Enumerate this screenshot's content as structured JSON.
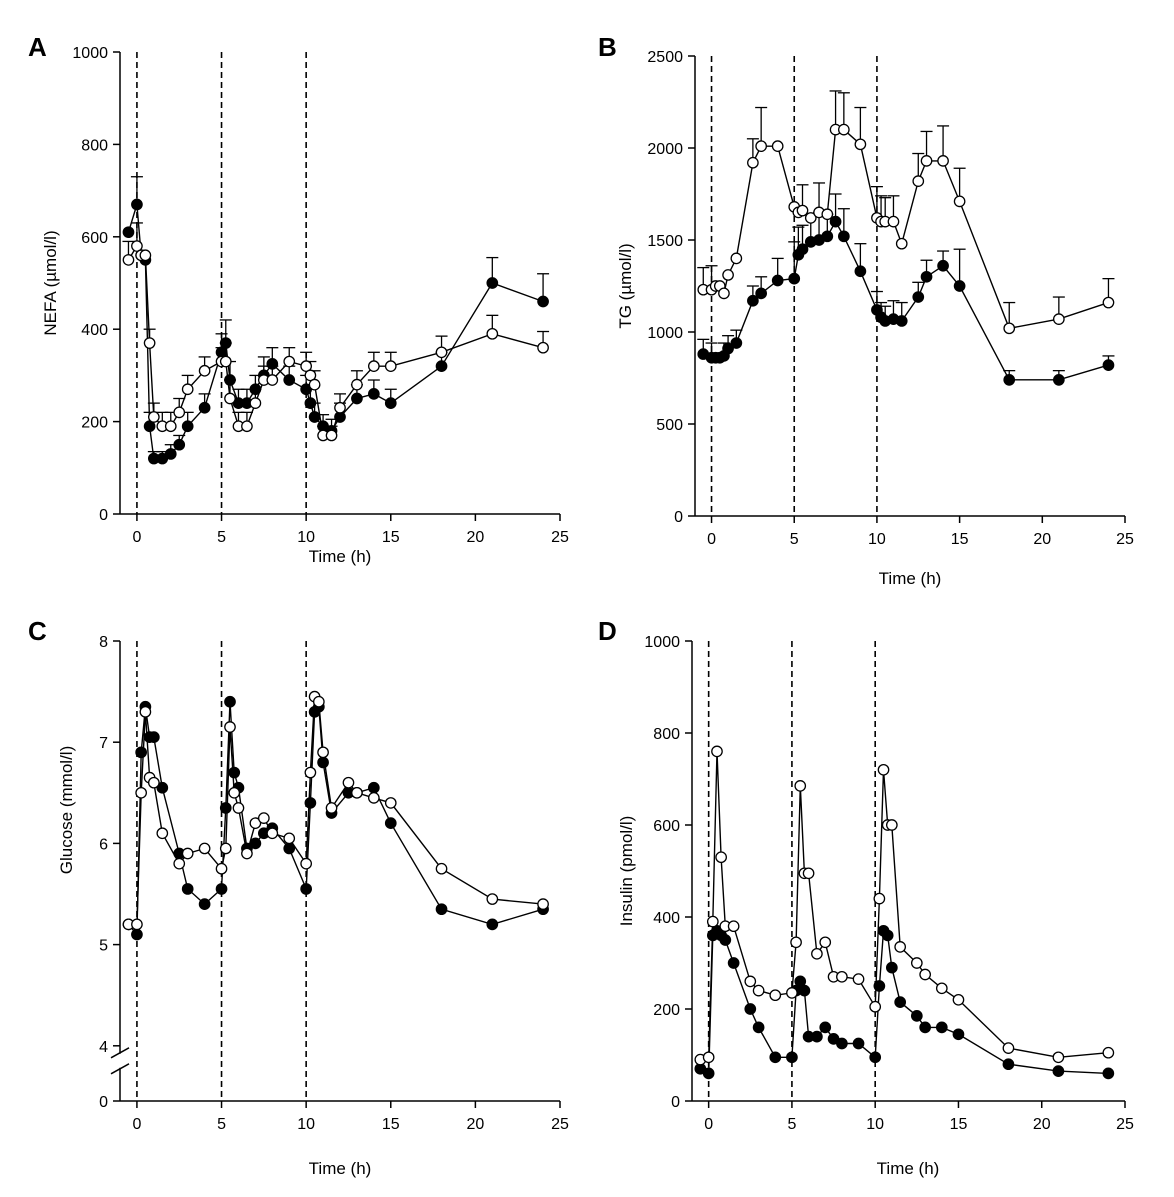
{
  "chart_data": [
    {
      "panel": "A",
      "type": "line",
      "xlabel": "Time (h)",
      "ylabel": "NEFA (µmol/l)",
      "xlim": [
        -1,
        25
      ],
      "ylim": [
        0,
        1000
      ],
      "xticks": [
        0,
        5,
        10,
        15,
        20,
        25
      ],
      "yticks": [
        0,
        200,
        400,
        600,
        800,
        1000
      ],
      "meal_lines": [
        0,
        5,
        10
      ],
      "axis_break": false,
      "series": [
        {
          "marker": "filled",
          "x": [
            -0.5,
            0,
            0.25,
            0.5,
            0.75,
            1,
            1.5,
            2,
            2.5,
            3,
            4,
            5,
            5.25,
            5.5,
            6,
            6.5,
            7,
            7.5,
            8,
            9,
            10,
            10.25,
            10.5,
            11,
            11.5,
            12,
            13,
            14,
            15,
            18,
            21,
            24
          ],
          "y": [
            610,
            670,
            560,
            550,
            190,
            120,
            120,
            130,
            150,
            190,
            230,
            350,
            370,
            290,
            240,
            240,
            270,
            300,
            325,
            290,
            270,
            240,
            210,
            190,
            180,
            210,
            250,
            260,
            240,
            320,
            500,
            460
          ],
          "err": [
            0,
            60,
            0,
            0,
            30,
            15,
            15,
            20,
            20,
            30,
            30,
            40,
            50,
            40,
            30,
            30,
            30,
            40,
            35,
            30,
            30,
            30,
            30,
            25,
            25,
            30,
            30,
            30,
            30,
            30,
            55,
            60
          ]
        },
        {
          "marker": "open",
          "x": [
            -0.5,
            0,
            0.25,
            0.5,
            0.75,
            1,
            1.5,
            2,
            2.5,
            3,
            4,
            5,
            5.25,
            5.5,
            6,
            6.5,
            7,
            7.5,
            8,
            9,
            10,
            10.25,
            10.5,
            11,
            11.5,
            12,
            13,
            14,
            15,
            18,
            21,
            24
          ],
          "y": [
            550,
            580,
            560,
            560,
            370,
            210,
            190,
            190,
            220,
            270,
            310,
            330,
            330,
            250,
            190,
            190,
            240,
            290,
            290,
            330,
            320,
            300,
            280,
            170,
            170,
            230,
            280,
            320,
            320,
            350,
            390,
            360
          ],
          "err": [
            40,
            50,
            0,
            0,
            30,
            30,
            30,
            30,
            30,
            30,
            30,
            30,
            40,
            40,
            30,
            30,
            30,
            30,
            30,
            30,
            30,
            30,
            30,
            20,
            20,
            30,
            30,
            30,
            30,
            35,
            40,
            35
          ]
        }
      ]
    },
    {
      "panel": "B",
      "type": "line",
      "xlabel": "Time (h)",
      "ylabel": "TG (µmol/l)",
      "xlim": [
        -1,
        25
      ],
      "ylim": [
        0,
        2500
      ],
      "xticks": [
        0,
        5,
        10,
        15,
        20,
        25
      ],
      "yticks": [
        0,
        500,
        1000,
        1500,
        2000,
        2500
      ],
      "meal_lines": [
        0,
        5,
        10
      ],
      "axis_break": false,
      "series": [
        {
          "marker": "filled",
          "x": [
            -0.5,
            0,
            0.25,
            0.5,
            0.75,
            1,
            1.5,
            2.5,
            3,
            4,
            5,
            5.25,
            5.5,
            6,
            6.5,
            7,
            7.5,
            8,
            9,
            10,
            10.25,
            10.5,
            11,
            11.5,
            12.5,
            13,
            14,
            15,
            18,
            21,
            24
          ],
          "y": [
            880,
            860,
            860,
            860,
            870,
            910,
            940,
            1170,
            1210,
            1280,
            1290,
            1420,
            1450,
            1490,
            1500,
            1520,
            1600,
            1520,
            1330,
            1120,
            1080,
            1060,
            1070,
            1060,
            1190,
            1300,
            1360,
            1250,
            740,
            740,
            820
          ],
          "err": [
            80,
            80,
            0,
            0,
            70,
            70,
            70,
            80,
            90,
            120,
            200,
            150,
            130,
            150,
            150,
            120,
            150,
            150,
            150,
            100,
            80,
            80,
            100,
            100,
            80,
            90,
            80,
            200,
            50,
            50,
            50
          ]
        },
        {
          "marker": "open",
          "x": [
            -0.5,
            0,
            0.25,
            0.5,
            0.75,
            1,
            1.5,
            2.5,
            3,
            4,
            5,
            5.25,
            5.5,
            6,
            6.5,
            7,
            7.5,
            8,
            9,
            10,
            10.25,
            10.5,
            11,
            11.5,
            12.5,
            13,
            14,
            15,
            18,
            21,
            24
          ],
          "y": [
            1230,
            1230,
            1250,
            1250,
            1210,
            1310,
            1400,
            1920,
            2010,
            2010,
            1680,
            1650,
            1660,
            1620,
            1650,
            1640,
            2100,
            2100,
            2020,
            1620,
            1600,
            1600,
            1600,
            1480,
            1820,
            1930,
            1930,
            1710,
            1020,
            1070,
            1160
          ],
          "err": [
            120,
            130,
            0,
            0,
            0,
            0,
            0,
            130,
            210,
            0,
            0,
            0,
            140,
            0,
            160,
            0,
            210,
            200,
            200,
            170,
            140,
            130,
            140,
            0,
            150,
            160,
            190,
            180,
            140,
            120,
            130
          ]
        }
      ]
    },
    {
      "panel": "C",
      "type": "line",
      "xlabel": "Time (h)",
      "ylabel": "Glucose (mmol/l)",
      "xlim": [
        -1,
        25
      ],
      "ylim": [
        4,
        8
      ],
      "xticks": [
        0,
        5,
        10,
        15,
        20,
        25
      ],
      "yticks": [
        4,
        5,
        6,
        7,
        8
      ],
      "break_tick": 0,
      "meal_lines": [
        0,
        5,
        10
      ],
      "axis_break": true,
      "series": [
        {
          "marker": "filled",
          "x": [
            -0.5,
            0,
            0.25,
            0.5,
            0.75,
            1,
            1.5,
            2.5,
            3,
            4,
            5,
            5.25,
            5.5,
            5.75,
            6,
            6.5,
            7,
            7.5,
            8,
            9,
            10,
            10.25,
            10.5,
            10.75,
            11,
            11.5,
            12.5,
            13,
            14,
            15,
            18,
            21,
            24
          ],
          "y": [
            5.2,
            5.1,
            6.9,
            7.35,
            7.05,
            7.05,
            6.55,
            5.9,
            5.55,
            5.4,
            5.55,
            6.35,
            7.4,
            6.7,
            6.55,
            5.95,
            6.0,
            6.1,
            6.15,
            5.95,
            5.55,
            6.4,
            7.3,
            7.35,
            6.8,
            6.3,
            6.5,
            6.5,
            6.55,
            6.2,
            5.35,
            5.2,
            5.35
          ]
        },
        {
          "marker": "open",
          "x": [
            -0.5,
            0,
            0.25,
            0.5,
            0.75,
            1,
            1.5,
            2.5,
            3,
            4,
            5,
            5.25,
            5.5,
            5.75,
            6,
            6.5,
            7,
            7.5,
            8,
            9,
            10,
            10.25,
            10.5,
            10.75,
            11,
            11.5,
            12.5,
            13,
            14,
            15,
            18,
            21,
            24
          ],
          "y": [
            5.2,
            5.2,
            6.5,
            7.3,
            6.65,
            6.6,
            6.1,
            5.8,
            5.9,
            5.95,
            5.75,
            5.95,
            7.15,
            6.5,
            6.35,
            5.9,
            6.2,
            6.25,
            6.1,
            6.05,
            5.8,
            6.7,
            7.45,
            7.4,
            6.9,
            6.35,
            6.6,
            6.5,
            6.45,
            6.4,
            5.75,
            5.45,
            5.4
          ]
        }
      ]
    },
    {
      "panel": "D",
      "type": "line",
      "xlabel": "Time (h)",
      "ylabel": "Insulin (pmol/l)",
      "xlim": [
        -1,
        25
      ],
      "ylim": [
        0,
        1000
      ],
      "xticks": [
        0,
        5,
        10,
        15,
        20,
        25
      ],
      "yticks": [
        0,
        200,
        400,
        600,
        800,
        1000
      ],
      "meal_lines": [
        0,
        5,
        10
      ],
      "axis_break": false,
      "series": [
        {
          "marker": "filled",
          "x": [
            -0.5,
            0,
            0.25,
            0.5,
            0.75,
            1,
            1.5,
            2.5,
            3,
            4,
            5,
            5.25,
            5.5,
            5.75,
            6,
            6.5,
            7,
            7.5,
            8,
            9,
            10,
            10.25,
            10.5,
            10.75,
            11,
            11.5,
            12.5,
            13,
            14,
            15,
            18,
            21,
            24
          ],
          "y": [
            70,
            60,
            360,
            370,
            360,
            350,
            300,
            200,
            160,
            95,
            95,
            240,
            260,
            240,
            140,
            140,
            160,
            135,
            125,
            125,
            95,
            250,
            370,
            360,
            290,
            215,
            185,
            160,
            160,
            145,
            80,
            65,
            60
          ]
        },
        {
          "marker": "open",
          "x": [
            -0.5,
            0,
            0.25,
            0.5,
            0.75,
            1,
            1.5,
            2.5,
            3,
            4,
            5,
            5.25,
            5.5,
            5.75,
            6,
            6.5,
            7,
            7.5,
            8,
            9,
            10,
            10.25,
            10.5,
            10.75,
            11,
            11.5,
            12.5,
            13,
            14,
            15,
            18,
            21,
            24
          ],
          "y": [
            90,
            95,
            390,
            760,
            530,
            380,
            380,
            260,
            240,
            230,
            235,
            345,
            685,
            495,
            495,
            320,
            345,
            270,
            270,
            265,
            205,
            440,
            720,
            600,
            600,
            335,
            300,
            275,
            245,
            220,
            115,
            95,
            105
          ]
        }
      ]
    }
  ]
}
